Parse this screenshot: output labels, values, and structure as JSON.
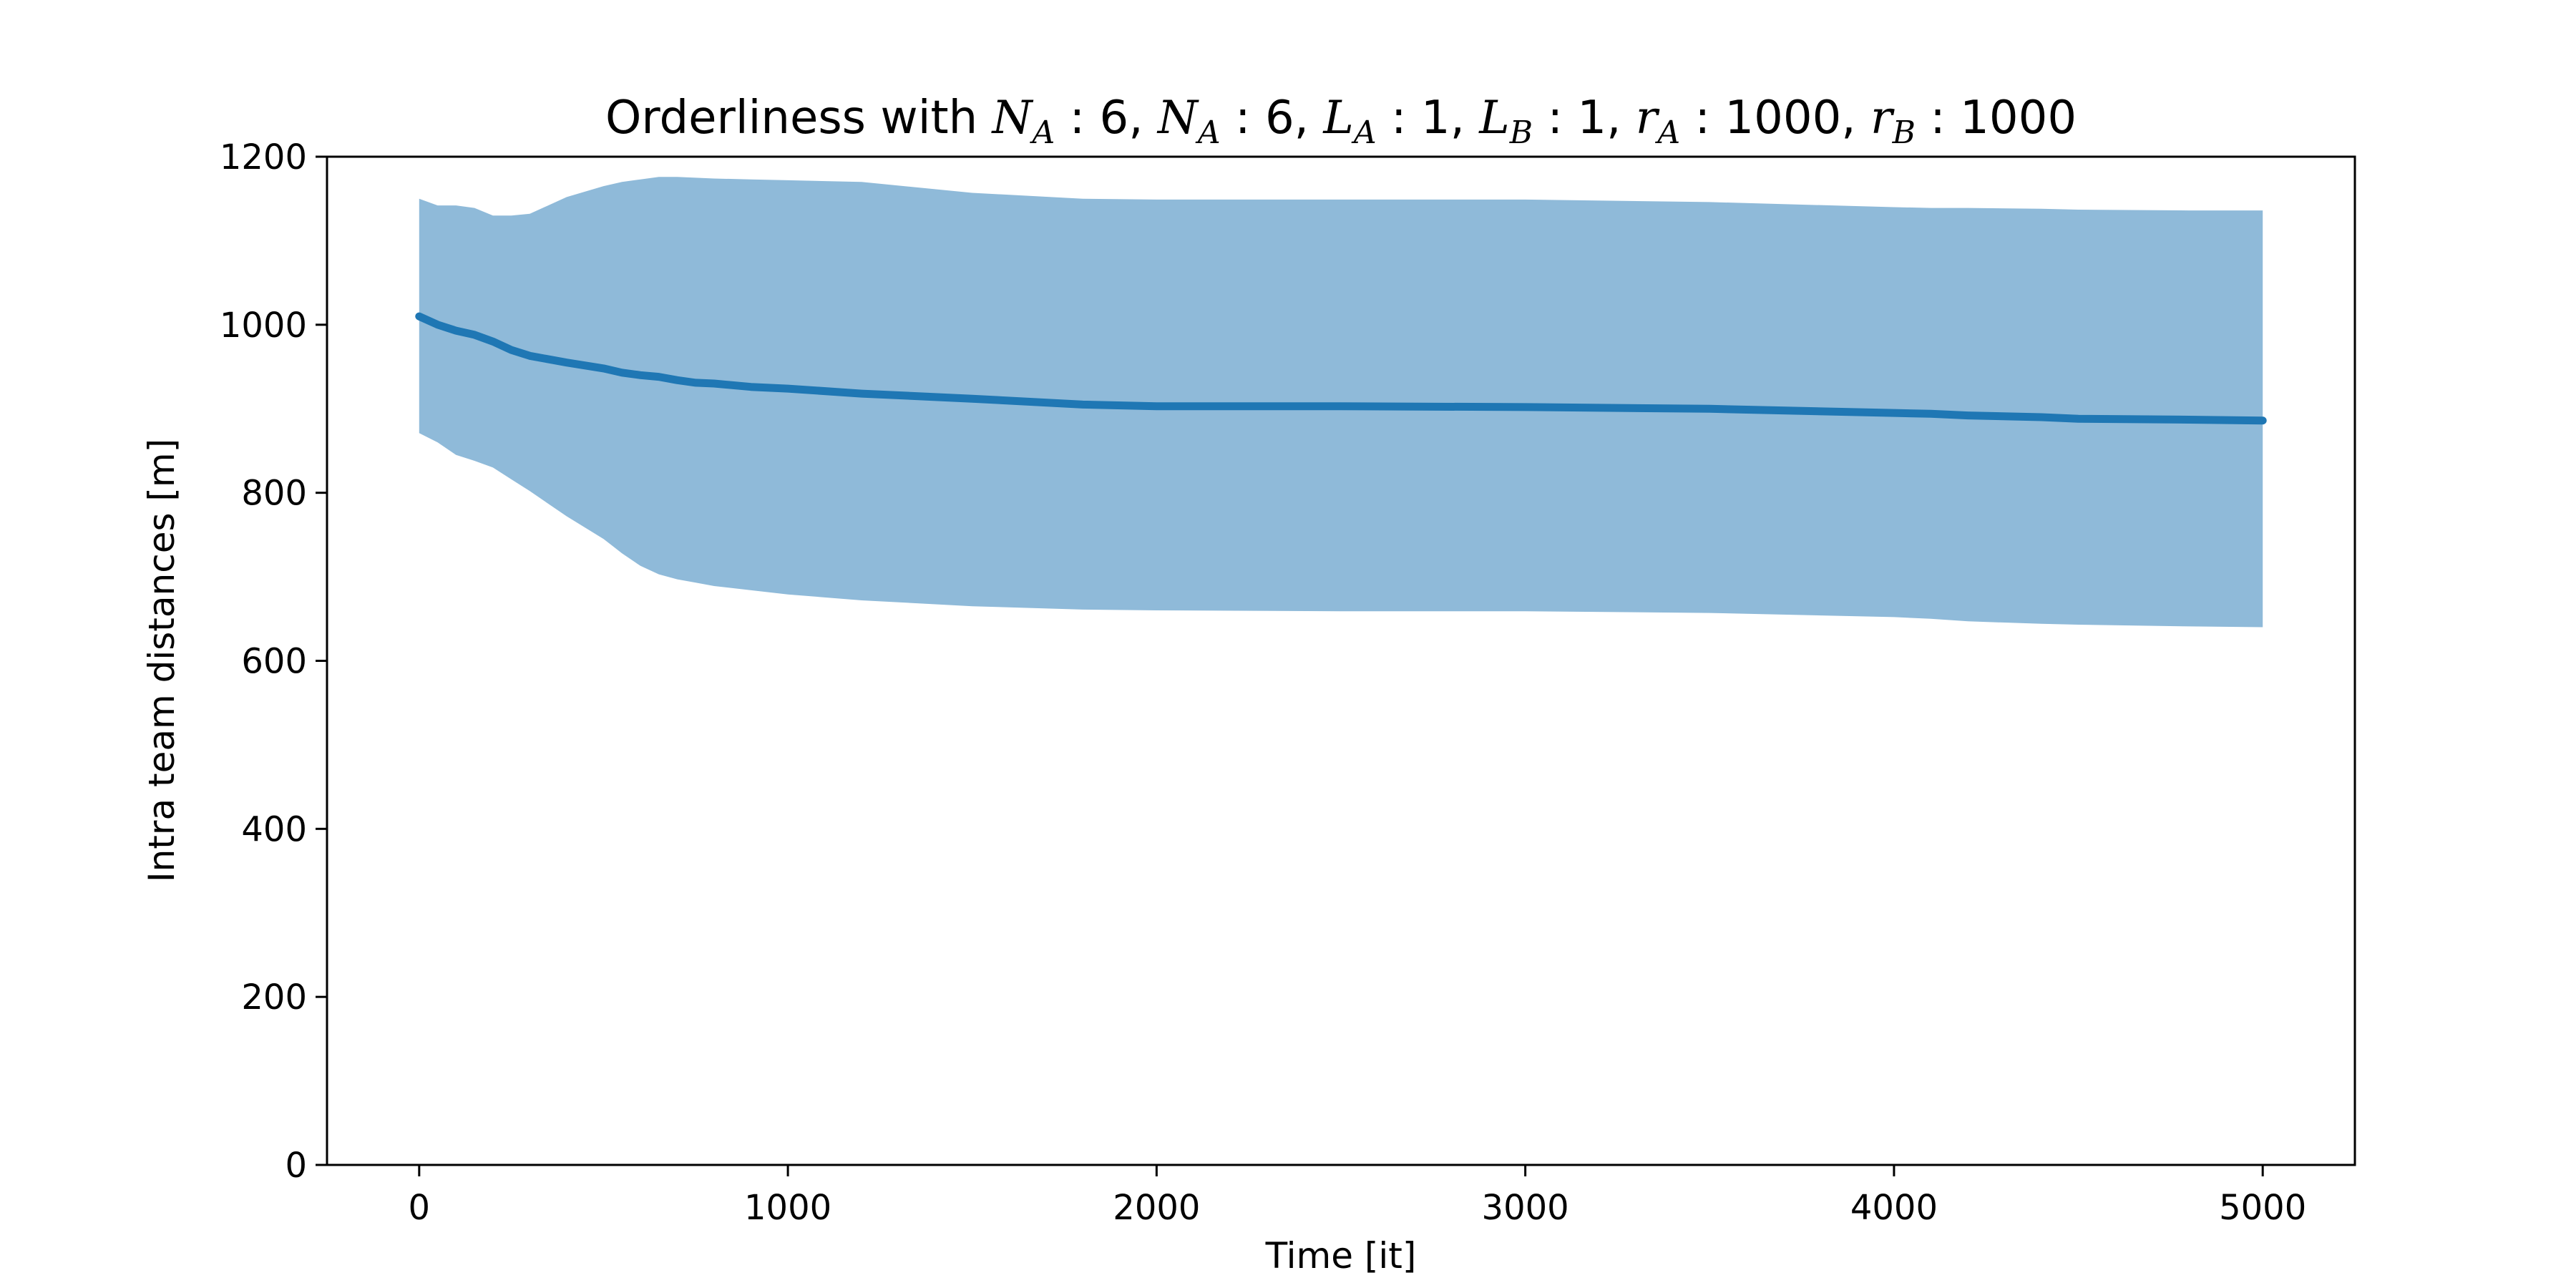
{
  "chart_data": {
    "type": "area",
    "title": "Orderliness with  N_A : 6, N_A : 6, L_A : 1, L_B : 1, r_A : 1000, r_B : 1000",
    "title_parts": {
      "prefix": "Orderliness with  ",
      "terms": [
        {
          "sym": "N",
          "sub": "A",
          "val": "6"
        },
        {
          "sym": "N",
          "sub": "A",
          "val": "6"
        },
        {
          "sym": "L",
          "sub": "A",
          "val": "1"
        },
        {
          "sym": "L",
          "sub": "B",
          "val": "1"
        },
        {
          "sym": "r",
          "sub": "A",
          "val": "1000"
        },
        {
          "sym": "r",
          "sub": "B",
          "val": "1000"
        }
      ]
    },
    "xlabel": "Time [it]",
    "ylabel": "Intra team distances [m]",
    "xlim": [
      -250,
      5250
    ],
    "ylim": [
      0,
      1200
    ],
    "xticks": [
      0,
      1000,
      2000,
      3000,
      4000,
      5000
    ],
    "yticks": [
      0,
      200,
      400,
      600,
      800,
      1000,
      1200
    ],
    "grid": false,
    "colors": {
      "line": "#1f77b4",
      "band": "#8fbad9",
      "axis": "#000000"
    },
    "x": [
      0,
      50,
      100,
      150,
      200,
      250,
      300,
      400,
      500,
      550,
      600,
      650,
      700,
      750,
      800,
      900,
      1000,
      1200,
      1500,
      1800,
      2000,
      2500,
      3000,
      3500,
      4000,
      4100,
      4200,
      4400,
      4500,
      4800,
      5000
    ],
    "series": [
      {
        "role": "mean",
        "values": [
          1010,
          1000,
          993,
          988,
          980,
          970,
          963,
          955,
          948,
          943,
          940,
          938,
          934,
          931,
          930,
          926,
          924,
          918,
          912,
          905,
          903,
          903,
          902,
          900,
          895,
          894,
          892,
          890,
          888,
          887,
          886
        ]
      },
      {
        "role": "upper",
        "values": [
          1150,
          1142,
          1142,
          1139,
          1130,
          1130,
          1132,
          1152,
          1165,
          1170,
          1173,
          1176,
          1176,
          1175,
          1174,
          1173,
          1172,
          1170,
          1157,
          1150,
          1149,
          1149,
          1149,
          1146,
          1140,
          1139,
          1139,
          1138,
          1137,
          1136,
          1136
        ]
      },
      {
        "role": "lower",
        "values": [
          871,
          860,
          845,
          838,
          830,
          816,
          802,
          772,
          745,
          728,
          713,
          703,
          697,
          693,
          689,
          684,
          679,
          672,
          665,
          661,
          660,
          659,
          659,
          657,
          652,
          650,
          647,
          644,
          643,
          641,
          640
        ]
      }
    ]
  }
}
